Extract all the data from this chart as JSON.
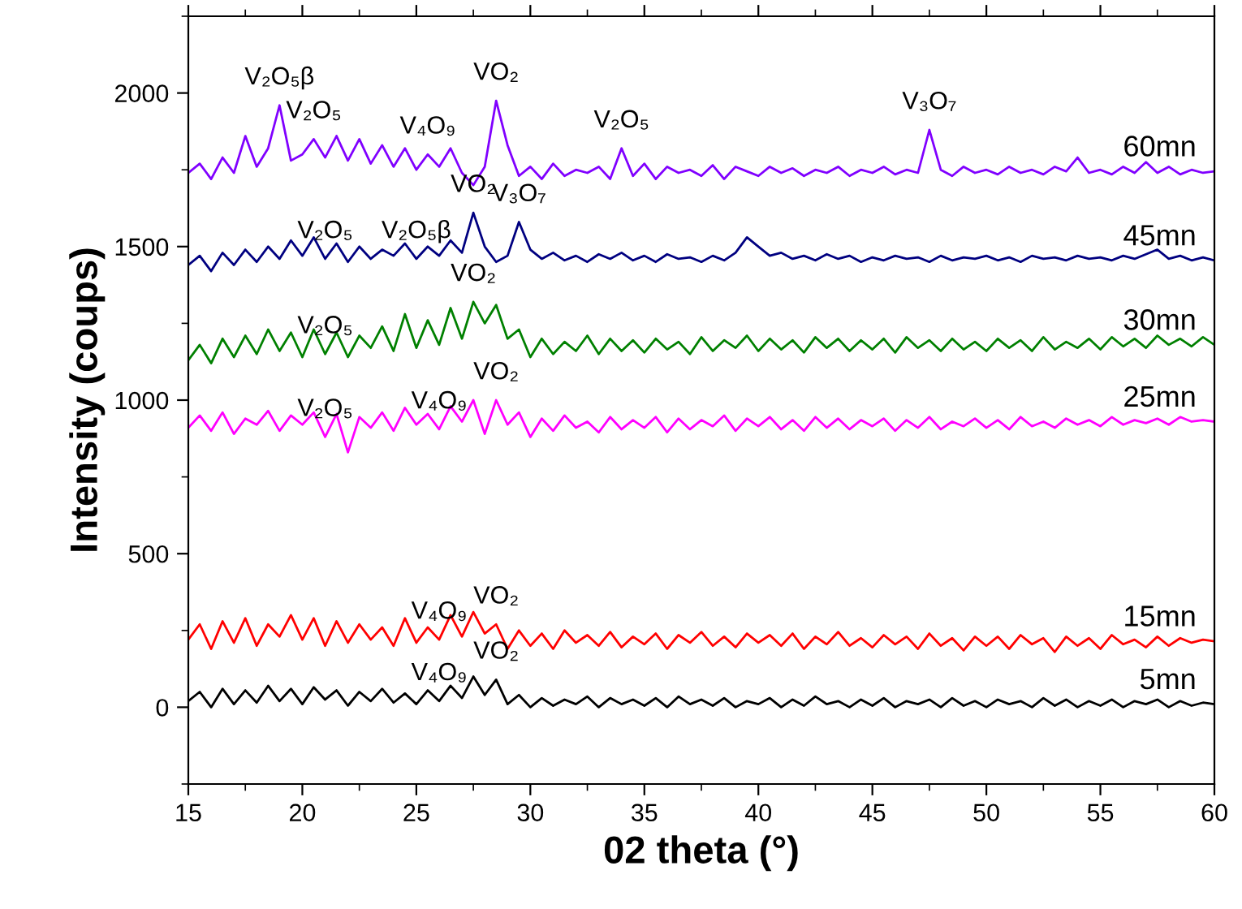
{
  "chart_data": {
    "type": "line",
    "xlabel": "02 theta (°)",
    "ylabel": "Intensity (coups)",
    "x": [
      15,
      15.5,
      16,
      16.5,
      17,
      17.5,
      18,
      18.5,
      19,
      19.5,
      20,
      20.5,
      21,
      21.5,
      22,
      22.5,
      23,
      23.5,
      24,
      24.5,
      25,
      25.5,
      26,
      26.5,
      27,
      27.5,
      28,
      28.5,
      29,
      29.5,
      30,
      30.5,
      31,
      31.5,
      32,
      32.5,
      33,
      33.5,
      34,
      34.5,
      35,
      35.5,
      36,
      36.5,
      37,
      37.5,
      38,
      38.5,
      39,
      39.5,
      40,
      40.5,
      41,
      41.5,
      42,
      42.5,
      43,
      43.5,
      44,
      44.5,
      45,
      45.5,
      46,
      46.5,
      47,
      47.5,
      48,
      48.5,
      49,
      49.5,
      50,
      50.5,
      51,
      51.5,
      52,
      52.5,
      53,
      53.5,
      54,
      54.5,
      55,
      55.5,
      56,
      56.5,
      57,
      57.5,
      58,
      58.5,
      59,
      59.5,
      60
    ],
    "xlim": [
      15,
      60
    ],
    "xticks": [
      15,
      20,
      25,
      30,
      35,
      40,
      45,
      50,
      55,
      60
    ],
    "ylim": [
      -250,
      2250
    ],
    "yticks": [
      0,
      500,
      1000,
      1500,
      2000
    ],
    "grid": false,
    "legend": false,
    "series": [
      {
        "name": "5mn",
        "color": "#000000",
        "values": [
          20,
          50,
          0,
          60,
          10,
          55,
          15,
          70,
          20,
          60,
          10,
          65,
          25,
          55,
          5,
          50,
          20,
          60,
          15,
          45,
          10,
          55,
          20,
          70,
          30,
          100,
          40,
          90,
          10,
          40,
          0,
          30,
          5,
          25,
          10,
          35,
          0,
          30,
          10,
          25,
          5,
          30,
          0,
          35,
          10,
          25,
          5,
          30,
          0,
          20,
          10,
          30,
          0,
          25,
          5,
          35,
          10,
          20,
          0,
          25,
          5,
          30,
          0,
          20,
          10,
          25,
          0,
          30,
          5,
          20,
          0,
          25,
          10,
          20,
          0,
          30,
          5,
          25,
          0,
          20,
          5,
          25,
          0,
          20,
          10,
          25,
          0,
          20,
          5,
          15,
          10
        ]
      },
      {
        "name": "15mn",
        "color": "#ff0000",
        "values": [
          220,
          270,
          190,
          280,
          210,
          290,
          200,
          270,
          230,
          300,
          220,
          290,
          200,
          280,
          210,
          270,
          220,
          260,
          200,
          290,
          210,
          260,
          220,
          300,
          230,
          310,
          240,
          270,
          190,
          250,
          200,
          240,
          190,
          250,
          210,
          235,
          200,
          245,
          195,
          230,
          205,
          240,
          190,
          235,
          210,
          245,
          200,
          230,
          195,
          240,
          210,
          235,
          200,
          240,
          190,
          230,
          205,
          245,
          200,
          225,
          195,
          235,
          205,
          230,
          190,
          240,
          200,
          225,
          185,
          230,
          200,
          230,
          190,
          235,
          205,
          225,
          180,
          230,
          200,
          225,
          190,
          235,
          205,
          220,
          195,
          230,
          200,
          225,
          210,
          220,
          215
        ]
      },
      {
        "name": "25mn",
        "color": "#ff00ff",
        "values": [
          910,
          950,
          900,
          960,
          890,
          940,
          920,
          965,
          900,
          950,
          920,
          960,
          880,
          955,
          830,
          945,
          910,
          960,
          900,
          975,
          920,
          955,
          905,
          980,
          930,
          1000,
          890,
          1000,
          920,
          960,
          880,
          940,
          900,
          950,
          910,
          930,
          895,
          945,
          905,
          935,
          910,
          945,
          895,
          940,
          905,
          935,
          915,
          950,
          900,
          940,
          915,
          945,
          905,
          935,
          900,
          945,
          910,
          940,
          905,
          935,
          915,
          940,
          900,
          935,
          910,
          945,
          905,
          930,
          915,
          940,
          910,
          935,
          905,
          945,
          915,
          930,
          910,
          940,
          920,
          935,
          915,
          945,
          920,
          935,
          925,
          940,
          920,
          945,
          930,
          935,
          930
        ]
      },
      {
        "name": "30mn",
        "color": "#008000",
        "values": [
          1130,
          1180,
          1120,
          1200,
          1140,
          1210,
          1150,
          1230,
          1160,
          1220,
          1140,
          1230,
          1150,
          1220,
          1140,
          1210,
          1170,
          1240,
          1160,
          1280,
          1170,
          1260,
          1180,
          1300,
          1200,
          1320,
          1250,
          1310,
          1200,
          1230,
          1140,
          1200,
          1150,
          1190,
          1160,
          1210,
          1150,
          1200,
          1160,
          1195,
          1155,
          1200,
          1165,
          1190,
          1150,
          1205,
          1160,
          1195,
          1170,
          1210,
          1160,
          1200,
          1165,
          1195,
          1155,
          1205,
          1170,
          1200,
          1160,
          1195,
          1165,
          1200,
          1155,
          1205,
          1170,
          1195,
          1160,
          1200,
          1165,
          1190,
          1160,
          1200,
          1170,
          1195,
          1160,
          1205,
          1165,
          1190,
          1170,
          1200,
          1165,
          1205,
          1175,
          1200,
          1170,
          1210,
          1180,
          1200,
          1175,
          1205,
          1180
        ]
      },
      {
        "name": "45mn",
        "color": "#000080",
        "values": [
          1440,
          1470,
          1420,
          1480,
          1440,
          1490,
          1450,
          1500,
          1460,
          1520,
          1470,
          1530,
          1460,
          1510,
          1450,
          1500,
          1460,
          1490,
          1470,
          1510,
          1460,
          1500,
          1470,
          1520,
          1480,
          1610,
          1500,
          1450,
          1470,
          1580,
          1490,
          1460,
          1480,
          1455,
          1470,
          1450,
          1475,
          1460,
          1480,
          1455,
          1470,
          1450,
          1475,
          1460,
          1465,
          1450,
          1470,
          1455,
          1480,
          1530,
          1500,
          1470,
          1480,
          1460,
          1470,
          1455,
          1475,
          1460,
          1470,
          1450,
          1465,
          1455,
          1470,
          1460,
          1465,
          1450,
          1470,
          1455,
          1465,
          1460,
          1470,
          1455,
          1465,
          1450,
          1470,
          1460,
          1465,
          1455,
          1470,
          1460,
          1465,
          1455,
          1470,
          1460,
          1475,
          1490,
          1460,
          1470,
          1455,
          1465,
          1455
        ]
      },
      {
        "name": "60mn",
        "color": "#8000ff",
        "values": [
          1740,
          1770,
          1720,
          1790,
          1740,
          1860,
          1760,
          1820,
          1960,
          1780,
          1800,
          1850,
          1790,
          1860,
          1780,
          1850,
          1770,
          1830,
          1760,
          1820,
          1750,
          1800,
          1760,
          1820,
          1740,
          1700,
          1760,
          1975,
          1830,
          1730,
          1760,
          1720,
          1770,
          1730,
          1750,
          1740,
          1760,
          1720,
          1820,
          1730,
          1770,
          1720,
          1760,
          1740,
          1750,
          1730,
          1765,
          1720,
          1760,
          1745,
          1730,
          1760,
          1740,
          1755,
          1730,
          1750,
          1740,
          1760,
          1730,
          1750,
          1740,
          1760,
          1735,
          1750,
          1740,
          1880,
          1750,
          1730,
          1760,
          1740,
          1750,
          1735,
          1760,
          1740,
          1750,
          1735,
          1760,
          1745,
          1790,
          1740,
          1750,
          1735,
          1760,
          1740,
          1775,
          1740,
          1760,
          1735,
          1750,
          1740,
          1745
        ]
      }
    ],
    "annotations": [
      {
        "text": "V₂O₅β",
        "x": 19,
        "y": 1960
      },
      {
        "text": "V₂O₅",
        "x": 20.5,
        "y": 1850
      },
      {
        "text": "V₄O₉",
        "x": 25.5,
        "y": 1800
      },
      {
        "text": "VO₂",
        "x": 28.5,
        "y": 1975
      },
      {
        "text": "V₂O₅",
        "x": 34,
        "y": 1820
      },
      {
        "text": "V₃O₇",
        "x": 47.5,
        "y": 1880
      },
      {
        "text": "V₂O₅",
        "x": 21,
        "y": 1460
      },
      {
        "text": "V₂O₅β",
        "x": 25,
        "y": 1460
      },
      {
        "text": "VO₂",
        "x": 27.5,
        "y": 1610
      },
      {
        "text": "V₃O₇",
        "x": 29.5,
        "y": 1580
      },
      {
        "text": "V₂O₅",
        "x": 21,
        "y": 1150
      },
      {
        "text": "VO₂",
        "x": 27.5,
        "y": 1320
      },
      {
        "text": "V₂O₅",
        "x": 21,
        "y": 880
      },
      {
        "text": "V₄O₉",
        "x": 26,
        "y": 905
      },
      {
        "text": "VO₂",
        "x": 28.5,
        "y": 1000
      },
      {
        "text": "V₄O₉",
        "x": 26,
        "y": 220
      },
      {
        "text": "VO₂",
        "x": 28.5,
        "y": 270
      },
      {
        "text": "V₄O₉",
        "x": 26,
        "y": 20
      },
      {
        "text": "VO₂",
        "x": 28.5,
        "y": 90
      }
    ]
  }
}
